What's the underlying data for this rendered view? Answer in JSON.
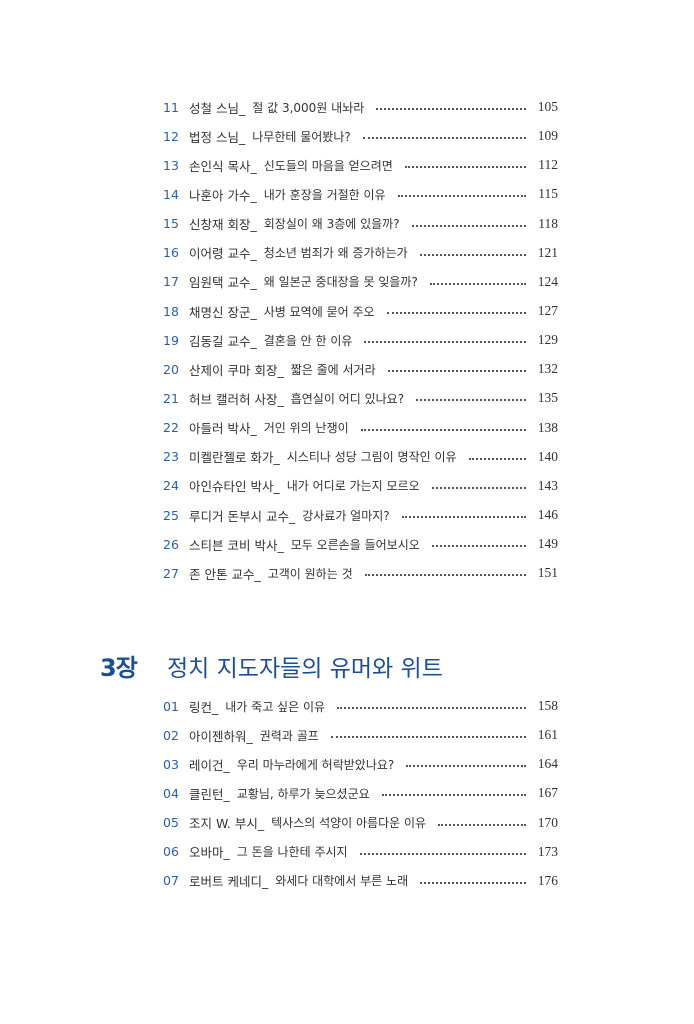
{
  "section1": {
    "entries": [
      {
        "num": "11",
        "who": "성철 스님_",
        "title": "절 값 3,000원 내놔라",
        "page": "105"
      },
      {
        "num": "12",
        "who": "법정 스님_",
        "title": "나무한테 물어봤나?",
        "page": "109"
      },
      {
        "num": "13",
        "who": "손인식 목사_",
        "title": "신도들의 마음을 얻으려면",
        "page": "112"
      },
      {
        "num": "14",
        "who": "나훈아 가수_",
        "title": "내가 훈장을 거절한 이유",
        "page": "115"
      },
      {
        "num": "15",
        "who": "신창재 회장_",
        "title": "회장실이 왜 3층에 있을까?",
        "page": "118"
      },
      {
        "num": "16",
        "who": "이어령 교수_",
        "title": "청소년 범죄가 왜 증가하는가",
        "page": "121"
      },
      {
        "num": "17",
        "who": "임원택 교수_",
        "title": "왜 일본군 중대장을 못 잊을까?",
        "page": "124"
      },
      {
        "num": "18",
        "who": "채명신 장군_",
        "title": "사병 묘역에 묻어 주오",
        "page": "127"
      },
      {
        "num": "19",
        "who": "김동길 교수_",
        "title": "결혼을 안 한 이유",
        "page": "129"
      },
      {
        "num": "20",
        "who": "산제이 쿠마 회장_",
        "title": "짧은 줄에 서거라",
        "page": "132"
      },
      {
        "num": "21",
        "who": "허브 캘러허 사장_",
        "title": "흡연실이 어디 있나요?",
        "page": "135"
      },
      {
        "num": "22",
        "who": "아들러 박사_",
        "title": "거인 위의 난쟁이",
        "page": "138"
      },
      {
        "num": "23",
        "who": "미켈란젤로 화가_",
        "title": "시스티나 성당 그림이 명작인 이유",
        "page": "140"
      },
      {
        "num": "24",
        "who": "아인슈타인 박사_",
        "title": "내가 어디로 가는지 모르오",
        "page": "143"
      },
      {
        "num": "25",
        "who": "루디거 돈부시 교수_",
        "title": "강사료가 얼마지?",
        "page": "146"
      },
      {
        "num": "26",
        "who": "스티븐 코비 박사_",
        "title": "모두 오른손을 들어보시오",
        "page": "149"
      },
      {
        "num": "27",
        "who": "존 안톤 교수_",
        "title": "고객이 원하는 것",
        "page": "151"
      }
    ]
  },
  "chapter3": {
    "label": "3장",
    "title": "정치 지도자들의 유머와 위트",
    "color": "#1d4f95",
    "entries": [
      {
        "num": "01",
        "who": "링컨_",
        "title": "내가 죽고 싶은 이유",
        "page": "158"
      },
      {
        "num": "02",
        "who": "아이젠하워_",
        "title": "권력과 골프",
        "page": "161"
      },
      {
        "num": "03",
        "who": "레이건_",
        "title": "우리 마누라에게 허락받았나요?",
        "page": "164"
      },
      {
        "num": "04",
        "who": "클린턴_",
        "title": "교황님, 하루가 늦으셨군요",
        "page": "167"
      },
      {
        "num": "05",
        "who": "조지 W. 부시_",
        "title": "텍사스의 석양이 아름다운 이유",
        "page": "170"
      },
      {
        "num": "06",
        "who": "오바마_",
        "title": "그 돈을 나한테 주시지",
        "page": "173"
      },
      {
        "num": "07",
        "who": "로버트 케네디_",
        "title": "와세다 대학에서 부른 노래",
        "page": "176"
      }
    ]
  }
}
